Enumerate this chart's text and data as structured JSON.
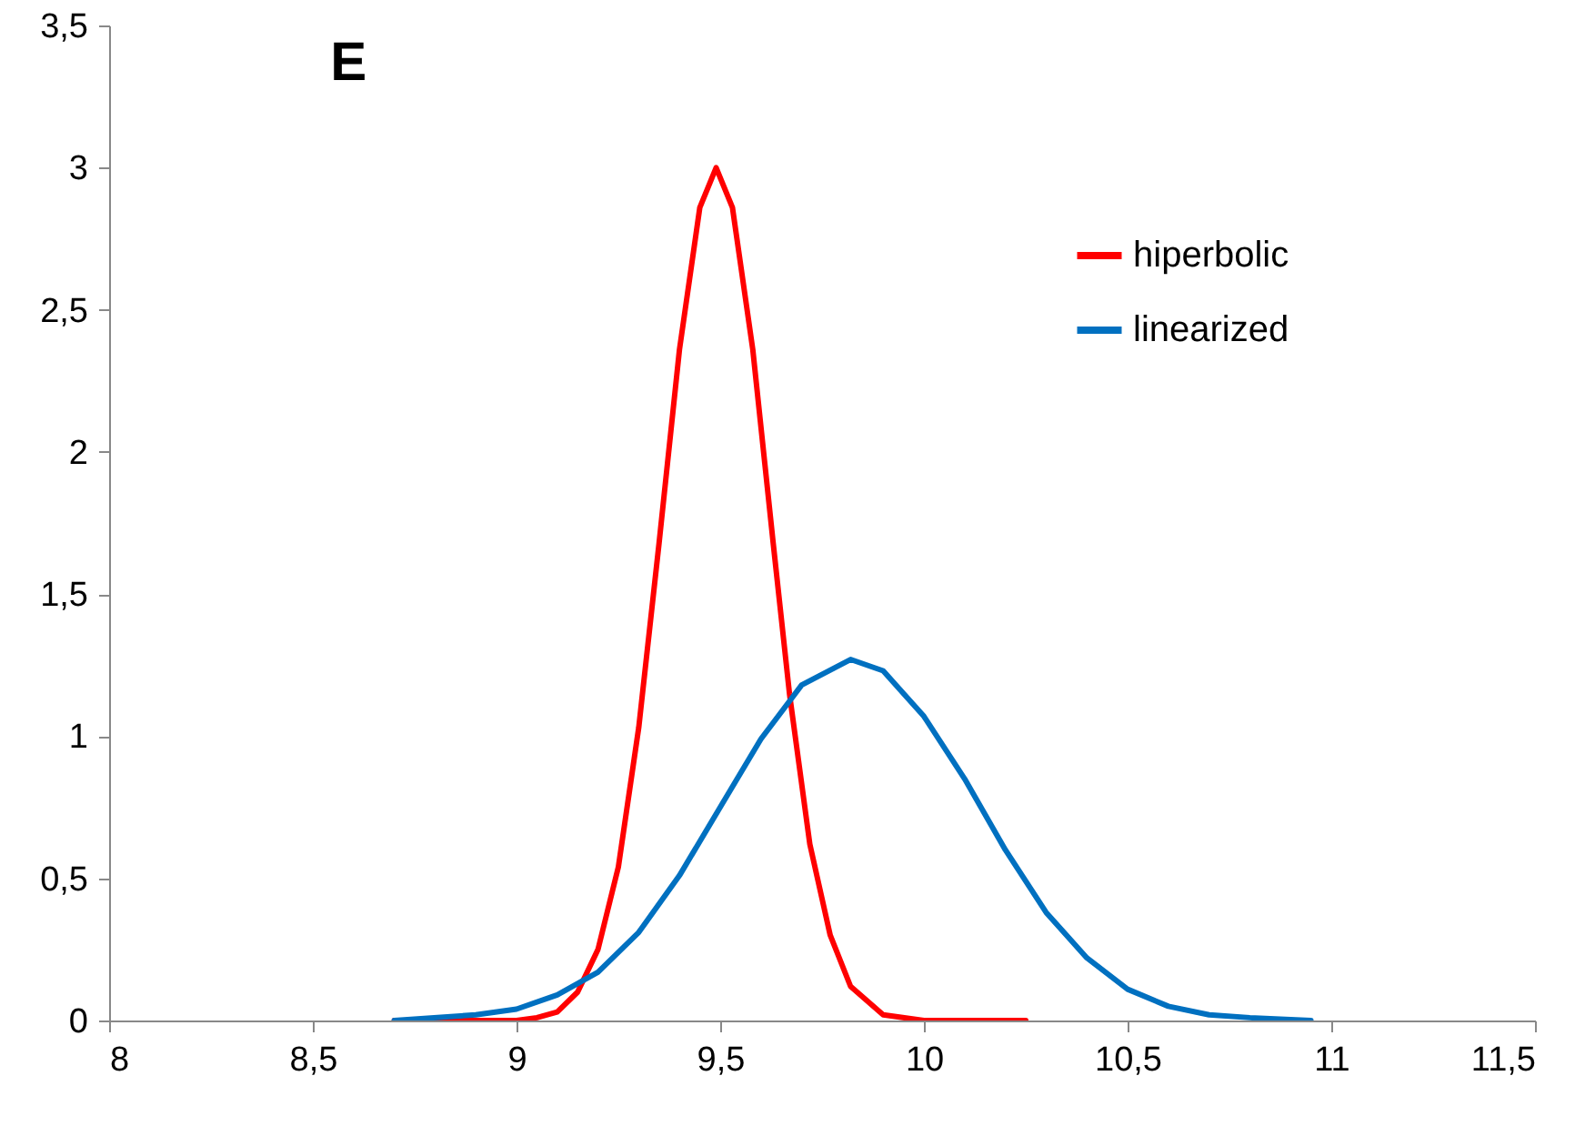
{
  "chart_data": {
    "type": "line",
    "title": "E",
    "series": [
      {
        "name": "hiperbolic",
        "color": "#ff0000",
        "x": [
          8.7,
          9.0,
          9.05,
          9.1,
          9.15,
          9.2,
          9.25,
          9.3,
          9.35,
          9.4,
          9.45,
          9.49,
          9.53,
          9.58,
          9.63,
          9.67,
          9.72,
          9.77,
          9.82,
          9.9,
          10.0,
          10.25
        ],
        "values": [
          0,
          0,
          0.01,
          0.03,
          0.1,
          0.25,
          0.54,
          1.03,
          1.68,
          2.36,
          2.86,
          3.0,
          2.86,
          2.36,
          1.68,
          1.15,
          0.62,
          0.3,
          0.12,
          0.02,
          0,
          0
        ]
      },
      {
        "name": "linearized",
        "color": "#0070c0",
        "x": [
          8.7,
          8.9,
          9.0,
          9.1,
          9.2,
          9.3,
          9.4,
          9.5,
          9.6,
          9.7,
          9.82,
          9.9,
          10.0,
          10.1,
          10.2,
          10.3,
          10.4,
          10.5,
          10.6,
          10.7,
          10.8,
          10.95
        ],
        "values": [
          0,
          0.02,
          0.04,
          0.09,
          0.17,
          0.31,
          0.51,
          0.75,
          0.99,
          1.18,
          1.27,
          1.23,
          1.07,
          0.85,
          0.6,
          0.38,
          0.22,
          0.11,
          0.05,
          0.02,
          0.01,
          0
        ]
      }
    ],
    "xlim": [
      8,
      11.5
    ],
    "xticks": [
      8,
      {
        "value": 8.5,
        "label": "8,5"
      },
      9,
      {
        "value": 9.5,
        "label": "9,5"
      },
      10,
      {
        "value": 10.5,
        "label": "10,5"
      },
      11,
      {
        "value": 11.5,
        "label": "11,5"
      }
    ],
    "ylim": [
      0,
      3.5
    ],
    "yticks": [
      0,
      {
        "value": 0.5,
        "label": "0,5"
      },
      1,
      {
        "value": 1.5,
        "label": "1,5"
      },
      2,
      {
        "value": 2.5,
        "label": "2,5"
      },
      3,
      {
        "value": 3.5,
        "label": "3,5"
      }
    ],
    "legend": "top right",
    "marker": "none",
    "line_style": "solid"
  }
}
